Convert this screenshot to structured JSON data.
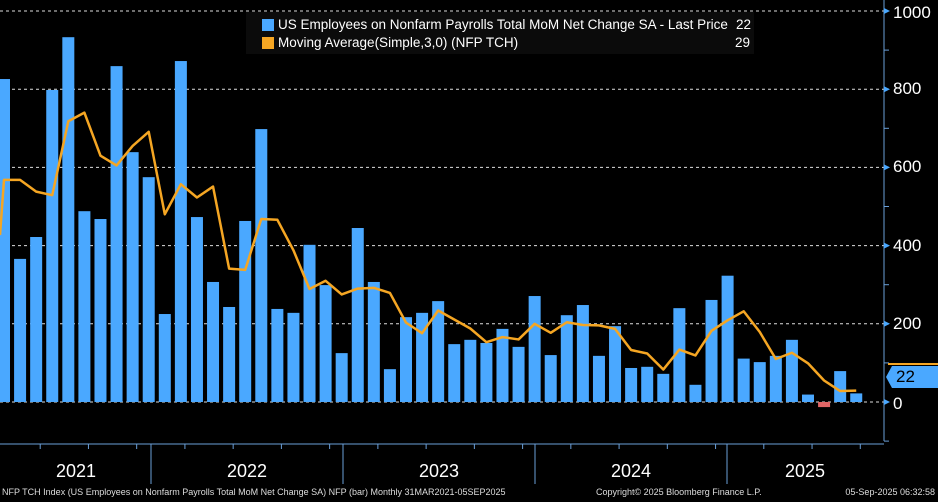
{
  "chart_data": {
    "type": "bar",
    "title": "",
    "xlabel": "",
    "ylabel": "",
    "ylim": [
      -100,
      1000
    ],
    "yticks": [
      "0",
      "200",
      "400",
      "600",
      "800",
      "1000"
    ],
    "grid": true,
    "legend_position": "top",
    "x_year_labels": [
      "2021",
      "2022",
      "2023",
      "2024",
      "2025"
    ],
    "categories": [
      "Mar-2021",
      "Apr-2021",
      "May-2021",
      "Jun-2021",
      "Jul-2021",
      "Aug-2021",
      "Sep-2021",
      "Oct-2021",
      "Nov-2021",
      "Dec-2021",
      "Jan-2022",
      "Feb-2022",
      "Mar-2022",
      "Apr-2022",
      "May-2022",
      "Jun-2022",
      "Jul-2022",
      "Aug-2022",
      "Sep-2022",
      "Oct-2022",
      "Nov-2022",
      "Dec-2022",
      "Jan-2023",
      "Feb-2023",
      "Mar-2023",
      "Apr-2023",
      "May-2023",
      "Jun-2023",
      "Jul-2023",
      "Aug-2023",
      "Sep-2023",
      "Oct-2023",
      "Nov-2023",
      "Dec-2023",
      "Jan-2024",
      "Feb-2024",
      "Mar-2024",
      "Apr-2024",
      "May-2024",
      "Jun-2024",
      "Jul-2024",
      "Aug-2024",
      "Sep-2024",
      "Oct-2024",
      "Nov-2024",
      "Dec-2024",
      "Jan-2025",
      "Feb-2025",
      "Mar-2025",
      "Apr-2025",
      "May-2025",
      "Jun-2025",
      "Jul-2025",
      "Aug-2025"
    ],
    "series": [
      {
        "name": "US Employees on Nonfarm Payrolls Total MoM Net Change SA - Last Price",
        "type": "bar",
        "color": "#4aa8ff",
        "negative_color": "#e06666",
        "last_value": "22",
        "values": [
          826,
          366,
          422,
          798,
          933,
          488,
          468,
          859,
          639,
          575,
          225,
          872,
          473,
          307,
          243,
          463,
          698,
          238,
          228,
          402,
          299,
          125,
          445,
          307,
          84,
          217,
          228,
          258,
          148,
          159,
          151,
          187,
          141,
          271,
          120,
          222,
          248,
          118,
          194,
          87,
          90,
          72,
          240,
          44,
          261,
          323,
          111,
          102,
          118,
          159,
          19,
          -13,
          79,
          22
        ]
      },
      {
        "name": "Moving Average(Simple,3,0) (NFP TCH)",
        "type": "line",
        "color": "#f5a623",
        "last_value": "29",
        "values": [
          568,
          568,
          538,
          529,
          718,
          740,
          630,
          605,
          655,
          691,
          480,
          557,
          523,
          551,
          341,
          338,
          468,
          466,
          388,
          289,
          310,
          275,
          290,
          292,
          279,
          203,
          176,
          234,
          211,
          188,
          153,
          166,
          160,
          200,
          177,
          204,
          197,
          196,
          187,
          133,
          124,
          83,
          134,
          119,
          182,
          209,
          232,
          179,
          110,
          126,
          99,
          55,
          28,
          29
        ]
      }
    ],
    "last_price_label": "22"
  },
  "footer": {
    "left": "NFP TCH Index (US Employees on Nonfarm Payrolls Total MoM Net Change SA) NFP (bar)  Monthly 31MAR2021-05SEP2025",
    "center": "Copyright© 2025 Bloomberg Finance L.P.",
    "right": "05-Sep-2025 06:32:58"
  }
}
